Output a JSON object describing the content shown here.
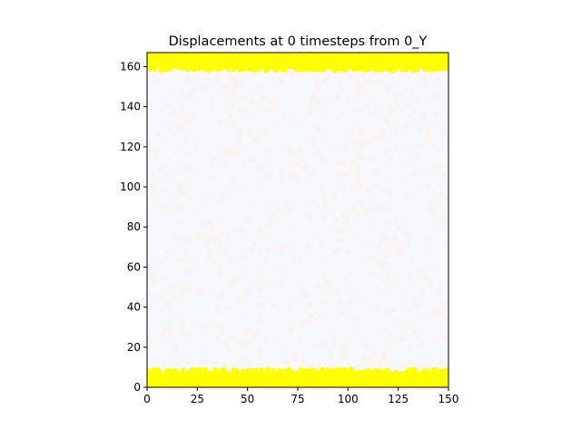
{
  "chart_data": {
    "type": "heatmap",
    "title": "Displacements at 0 timesteps from 0_Y",
    "xlabel": "",
    "ylabel": "",
    "xlim": [
      0,
      150
    ],
    "ylim": [
      0,
      167
    ],
    "x_ticks": [
      0,
      25,
      50,
      75,
      100,
      125,
      150
    ],
    "y_ticks": [
      0,
      20,
      40,
      60,
      80,
      100,
      120,
      140,
      160
    ],
    "grid": false,
    "legend": "none",
    "regions": [
      {
        "y_range": [
          0,
          8
        ],
        "color": "#ffff00",
        "description": "boundary band"
      },
      {
        "y_range": [
          8,
          159
        ],
        "color": "#f6f8fd",
        "secondary_color": "#fdf1ea",
        "description": "interior speckle"
      },
      {
        "y_range": [
          159,
          167
        ],
        "color": "#ffff00",
        "description": "boundary band"
      }
    ]
  },
  "colors": {
    "boundary": "#ffff00",
    "interior_base": "#f6f8fd",
    "interior_speckle": "#fdf1ea",
    "axis": "#000000"
  }
}
